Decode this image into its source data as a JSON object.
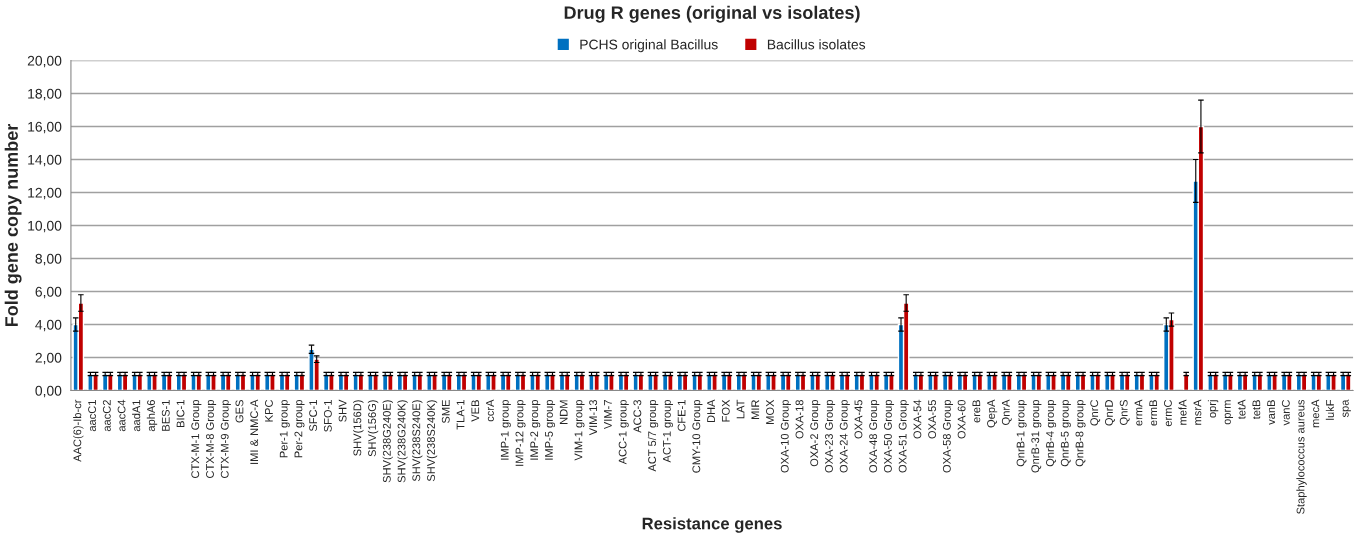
{
  "chart_data": {
    "type": "bar",
    "title": "Drug R genes (original vs isolates)",
    "xlabel": "Resistance genes",
    "ylabel": "Fold gene copy number",
    "categories": [
      "AAC(6)-Ib-cr",
      "aacC1",
      "aacC2",
      "aacC4",
      "aadA1",
      "aphA6",
      "BES-1",
      "BIC-1",
      "CTX-M-1 Group",
      "CTX-M-8 Group",
      "CTX-M-9 Group",
      "GES",
      "IMI & NMC-A",
      "KPC",
      "Per-1 group",
      "Per-2 group",
      "SFC-1",
      "SFO-1",
      "SHV",
      "SHV(156D)",
      "SHV(156G)",
      "SHV(238G240E)",
      "SHV(238G240K)",
      "SHV(238S240E)",
      "SHV(238S240K)",
      "SME",
      "TLA-1",
      "VEB",
      "ccrA",
      "IMP-1 group",
      "IMP-12 group",
      "IMP-2 group",
      "IMP-5 group",
      "NDM",
      "VIM-1 group",
      "VIM-13",
      "VIM-7",
      "ACC-1 group",
      "ACC-3",
      "ACT 5/7 group",
      "ACT-1 group",
      "CFE-1",
      "CMY-10 Group",
      "DHA",
      "FOX",
      "LAT",
      "MIR",
      "MOX",
      "OXA-10 Group",
      "OXA-18",
      "OXA-2 Group",
      "OXA-23 Group",
      "OXA-24 Group",
      "OXA-45",
      "OXA-48 Group",
      "OXA-50 Group",
      "OXA-51 Group",
      "OXA-54",
      "OXA-55",
      "OXA-58 Group",
      "OXA-60",
      "ereB",
      "QepA",
      "QnrA",
      "QnrB-1 group",
      "QnrB-31 group",
      "QnrB-4 group",
      "QnrB-5 group",
      "QnrB-8 group",
      "QnrC",
      "QnrD",
      "QnrS",
      "ermA",
      "ermB",
      "ermC",
      "mefA",
      "msrA",
      "oprj",
      "oprm",
      "tetA",
      "tetB",
      "vanB",
      "vanC",
      "Staphylococcus aureus",
      "mecA",
      "lukF",
      "spa"
    ],
    "series": [
      {
        "name": "PCHS original Bacillus",
        "color": "#0070c0",
        "values": [
          4.0,
          1,
          1,
          1,
          1,
          1,
          1,
          1,
          1,
          1,
          1,
          1,
          1,
          1,
          1,
          1,
          2.5,
          1,
          1,
          1,
          1,
          1,
          1,
          1,
          1,
          1,
          1,
          1,
          1,
          1,
          1,
          1,
          1,
          1,
          1,
          1,
          1,
          1,
          1,
          1,
          1,
          1,
          1,
          1,
          1,
          1,
          1,
          1,
          1,
          1,
          1,
          1,
          1,
          1,
          1,
          1,
          4.0,
          1,
          1,
          1,
          1,
          1,
          1,
          1,
          1,
          1,
          1,
          1,
          1,
          1,
          1,
          1,
          1,
          1,
          4.0,
          null,
          12.7,
          1,
          1,
          1,
          1,
          1,
          1,
          1,
          1,
          1,
          1
        ],
        "errors": [
          0.4,
          0.1,
          0.1,
          0.1,
          0.1,
          0.1,
          0.1,
          0.1,
          0.1,
          0.1,
          0.1,
          0.1,
          0.1,
          0.1,
          0.1,
          0.1,
          0.25,
          0.1,
          0.1,
          0.1,
          0.1,
          0.1,
          0.1,
          0.1,
          0.1,
          0.1,
          0.1,
          0.1,
          0.1,
          0.1,
          0.1,
          0.1,
          0.1,
          0.1,
          0.1,
          0.1,
          0.1,
          0.1,
          0.1,
          0.1,
          0.1,
          0.1,
          0.1,
          0.1,
          0.1,
          0.1,
          0.1,
          0.1,
          0.1,
          0.1,
          0.1,
          0.1,
          0.1,
          0.1,
          0.1,
          0.1,
          0.4,
          0.1,
          0.1,
          0.1,
          0.1,
          0.1,
          0.1,
          0.1,
          0.1,
          0.1,
          0.1,
          0.1,
          0.1,
          0.1,
          0.1,
          0.1,
          0.1,
          0.1,
          0.4,
          null,
          1.3,
          0.1,
          0.1,
          0.1,
          0.1,
          0.1,
          0.1,
          0.1,
          0.1,
          0.1,
          0.1
        ]
      },
      {
        "name": "Bacillus isolates",
        "color": "#c00000",
        "values": [
          5.3,
          1,
          1,
          1,
          1,
          1,
          1,
          1,
          1,
          1,
          1,
          1,
          1,
          1,
          1,
          1,
          1.9,
          1,
          1,
          1,
          1,
          1,
          1,
          1,
          1,
          1,
          1,
          1,
          1,
          1,
          1,
          1,
          1,
          1,
          1,
          1,
          1,
          1,
          1,
          1,
          1,
          1,
          1,
          1,
          1,
          1,
          1,
          1,
          1,
          1,
          1,
          1,
          1,
          1,
          1,
          1,
          5.3,
          1,
          1,
          1,
          1,
          1,
          1,
          1,
          1,
          1,
          1,
          1,
          1,
          1,
          1,
          1,
          1,
          1,
          4.3,
          1,
          16.0,
          1,
          1,
          1,
          1,
          1,
          1,
          1,
          1,
          1,
          1
        ],
        "errors": [
          0.5,
          0.1,
          0.1,
          0.1,
          0.1,
          0.1,
          0.1,
          0.1,
          0.1,
          0.1,
          0.1,
          0.1,
          0.1,
          0.1,
          0.1,
          0.1,
          0.2,
          0.1,
          0.1,
          0.1,
          0.1,
          0.1,
          0.1,
          0.1,
          0.1,
          0.1,
          0.1,
          0.1,
          0.1,
          0.1,
          0.1,
          0.1,
          0.1,
          0.1,
          0.1,
          0.1,
          0.1,
          0.1,
          0.1,
          0.1,
          0.1,
          0.1,
          0.1,
          0.1,
          0.1,
          0.1,
          0.1,
          0.1,
          0.1,
          0.1,
          0.1,
          0.1,
          0.1,
          0.1,
          0.1,
          0.1,
          0.5,
          0.1,
          0.1,
          0.1,
          0.1,
          0.1,
          0.1,
          0.1,
          0.1,
          0.1,
          0.1,
          0.1,
          0.1,
          0.1,
          0.1,
          0.1,
          0.1,
          0.1,
          0.4,
          0.1,
          1.6,
          0.1,
          0.1,
          0.1,
          0.1,
          0.1,
          0.1,
          0.1,
          0.1,
          0.1,
          0.1
        ]
      }
    ],
    "ylim": [
      0,
      20
    ],
    "yticks": [
      {
        "value": 0,
        "label": "0,00"
      },
      {
        "value": 2,
        "label": "2,00"
      },
      {
        "value": 4,
        "label": "4,00"
      },
      {
        "value": 6,
        "label": "6,00"
      },
      {
        "value": 8,
        "label": "8,00"
      },
      {
        "value": 10,
        "label": "10,00"
      },
      {
        "value": 12,
        "label": "12,00"
      },
      {
        "value": 14,
        "label": "14,00"
      },
      {
        "value": 16,
        "label": "16,00"
      },
      {
        "value": 18,
        "label": "18,00"
      },
      {
        "value": 20,
        "label": "20,00"
      }
    ],
    "grid": "y",
    "legend": "top"
  }
}
